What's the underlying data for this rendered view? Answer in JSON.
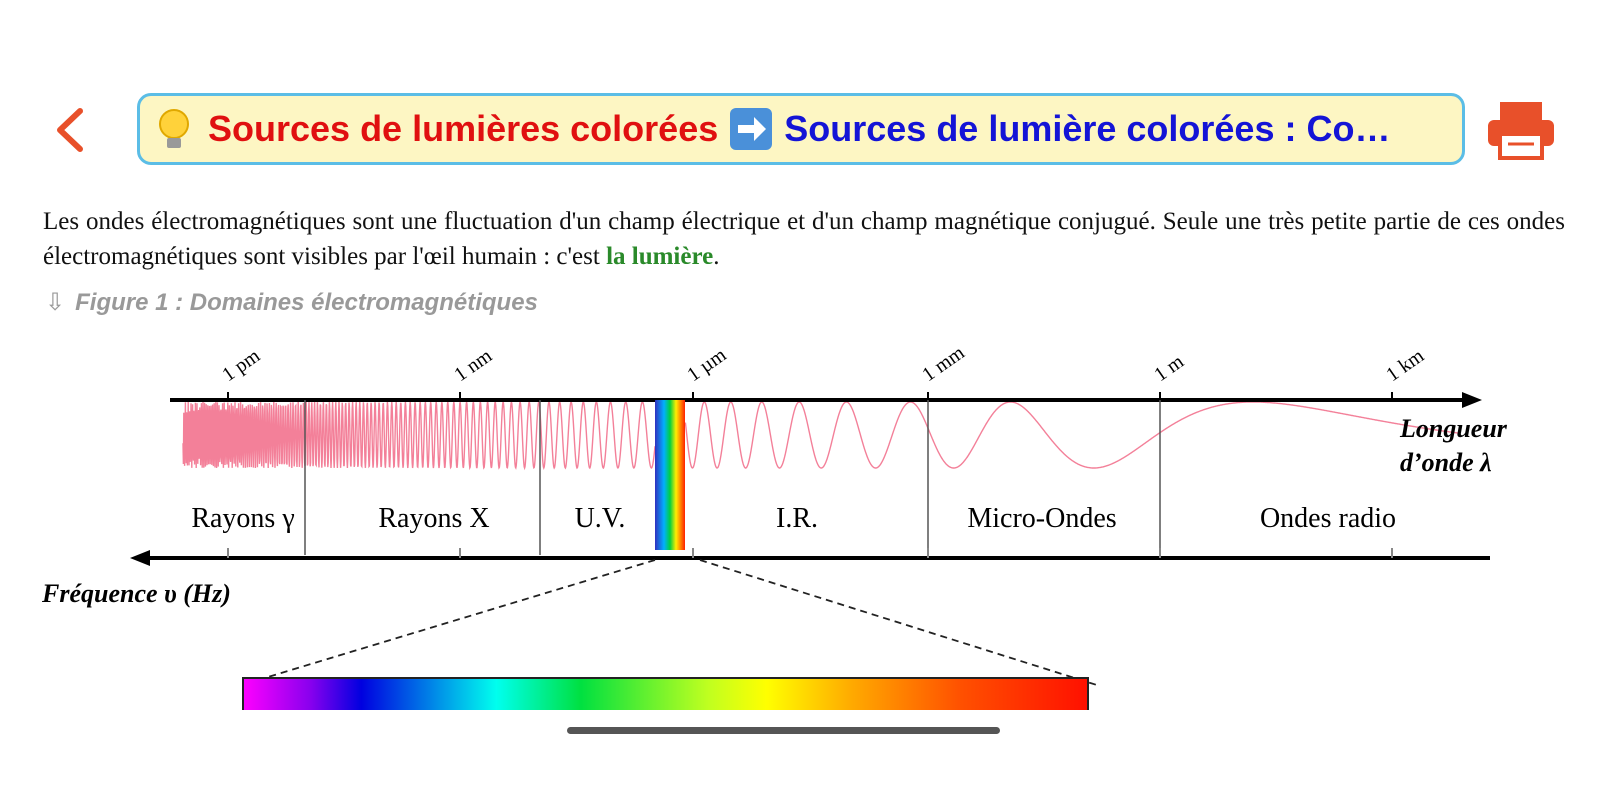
{
  "header": {
    "title_part1": "Sources de lumières colorées",
    "title_part2": "Sources de lumière colorées : Co…"
  },
  "content": {
    "paragraph": {
      "text_before": "Les ondes électromagnétiques sont une fluctuation d'un champ électrique et d'un champ magnétique conjugué. Seule une très petite partie de ces ondes électromagnétiques sont visibles par l'œil humain : c'est ",
      "highlight": "la lumière",
      "text_after": "."
    },
    "figure_caption": "Figure 1 : Domaines électromagnétiques"
  },
  "diagram": {
    "scale_labels": [
      "1 pm",
      "1 nm",
      "1 µm",
      "1 mm",
      "1 m",
      "1 km"
    ],
    "domains": [
      "Rayons γ",
      "Rayons X",
      "U.V.",
      "I.R.",
      "Micro-Ondes",
      "Ondes radio"
    ],
    "wavelength_label": [
      "Longueur",
      "d’onde λ"
    ],
    "frequency_label": "Fréquence υ (Hz)"
  }
}
